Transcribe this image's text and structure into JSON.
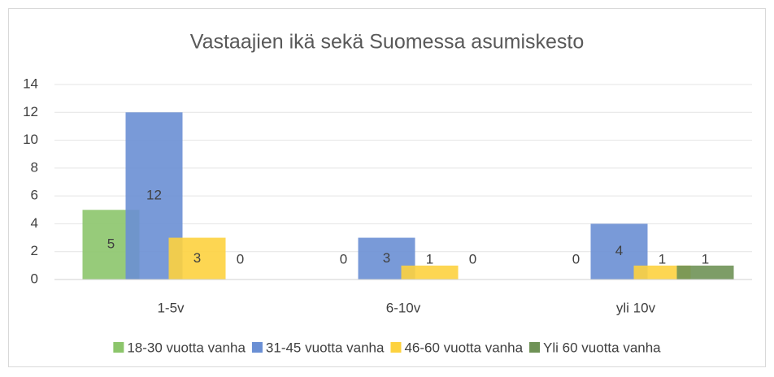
{
  "chart_data": {
    "type": "bar",
    "title": "Vastaajien ikä sekä Suomessa asumiskesto",
    "categories": [
      "1-5v",
      "6-10v",
      "yli 10v"
    ],
    "series": [
      {
        "name": "18-30 vuotta vanha",
        "color": "#8cc56b",
        "values": [
          5,
          0,
          0
        ]
      },
      {
        "name": "31-45 vuotta vanha",
        "color": "#6a8fd4",
        "values": [
          12,
          3,
          4
        ]
      },
      {
        "name": "46-60 vuotta vanha",
        "color": "#fdd23f",
        "values": [
          3,
          1,
          1
        ]
      },
      {
        "name": "Yli 60 vuotta vanha",
        "color": "#6f9256",
        "values": [
          0,
          0,
          1
        ]
      }
    ],
    "ylim": [
      0,
      14
    ],
    "yticks": [
      0,
      2,
      4,
      6,
      8,
      10,
      12,
      14
    ],
    "grid": true,
    "legend": "bottom"
  }
}
